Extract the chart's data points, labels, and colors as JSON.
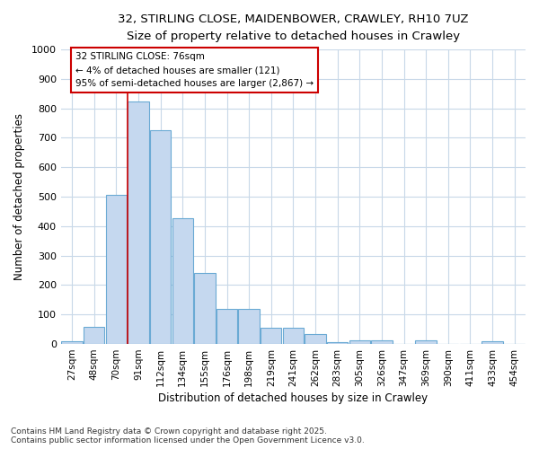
{
  "title1": "32, STIRLING CLOSE, MAIDENBOWER, CRAWLEY, RH10 7UZ",
  "title2": "Size of property relative to detached houses in Crawley",
  "xlabel": "Distribution of detached houses by size in Crawley",
  "ylabel": "Number of detached properties",
  "footer": "Contains HM Land Registry data © Crown copyright and database right 2025.\nContains public sector information licensed under the Open Government Licence v3.0.",
  "categories": [
    "27sqm",
    "48sqm",
    "70sqm",
    "91sqm",
    "112sqm",
    "134sqm",
    "155sqm",
    "176sqm",
    "198sqm",
    "219sqm",
    "241sqm",
    "262sqm",
    "283sqm",
    "305sqm",
    "326sqm",
    "347sqm",
    "369sqm",
    "390sqm",
    "411sqm",
    "433sqm",
    "454sqm"
  ],
  "values": [
    10,
    57,
    505,
    825,
    727,
    428,
    240,
    118,
    118,
    55,
    55,
    33,
    5,
    13,
    13,
    0,
    13,
    0,
    0,
    8,
    0
  ],
  "bar_color": "#c5d8ef",
  "bar_edge_color": "#6aaad4",
  "annotation_text": "32 STIRLING CLOSE: 76sqm\n← 4% of detached houses are smaller (121)\n95% of semi-detached houses are larger (2,867) →",
  "vline_x_index": 2.5,
  "vline_color": "#cc0000",
  "annotation_box_color": "#cc0000",
  "ylim": [
    0,
    1000
  ],
  "yticks": [
    0,
    100,
    200,
    300,
    400,
    500,
    600,
    700,
    800,
    900,
    1000
  ],
  "bg_color": "#ffffff",
  "plot_bg_color": "#ffffff",
  "grid_color": "#c8d8e8"
}
